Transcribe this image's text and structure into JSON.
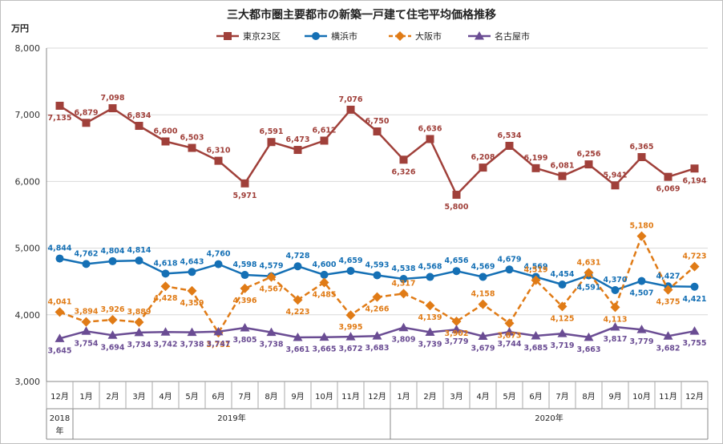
{
  "chart_data": {
    "type": "line",
    "title": "三大都市圏主要都市の新築一戸建て住宅平均価格推移",
    "ylabel": "万円",
    "ylim": [
      3000,
      8000
    ],
    "yticks": [
      "3,000",
      "4,000",
      "5,000",
      "6,000",
      "7,000",
      "8,000"
    ],
    "ytick_values": [
      3000,
      4000,
      5000,
      6000,
      7000,
      8000
    ],
    "categories": [
      "12月",
      "1月",
      "2月",
      "3月",
      "4月",
      "5月",
      "6月",
      "7月",
      "8月",
      "9月",
      "10月",
      "11月",
      "12月",
      "1月",
      "2月",
      "3月",
      "4月",
      "5月",
      "6月",
      "7月",
      "8月",
      "9月",
      "10月",
      "11月",
      "12月"
    ],
    "year_groups": [
      {
        "label_line1": "2018",
        "label_line2": "年",
        "start": 0,
        "end": 0
      },
      {
        "label_line1": "2019年",
        "label_line2": "",
        "start": 1,
        "end": 12
      },
      {
        "label_line1": "2020年",
        "label_line2": "",
        "start": 13,
        "end": 24
      }
    ],
    "series": [
      {
        "name": "東京23区",
        "color": "#a0403a",
        "marker": "square",
        "dashed": false,
        "values": [
          7135,
          6879,
          7098,
          6834,
          6600,
          6503,
          6310,
          5971,
          6591,
          6473,
          6612,
          7076,
          6750,
          6326,
          6636,
          5800,
          6208,
          6534,
          6199,
          6081,
          6256,
          5941,
          6365,
          6069,
          6194
        ],
        "labels": [
          "7,135",
          "6,879",
          "7,098",
          "6,834",
          "6,600",
          "6,503",
          "6,310",
          "5,971",
          "6,591",
          "6,473",
          "6,612",
          "7,076",
          "6,750",
          "6,326",
          "6,636",
          "5,800",
          "6,208",
          "6,534",
          "6,199",
          "6,081",
          "6,256",
          "5,941",
          "6,365",
          "6,069",
          "6,194"
        ]
      },
      {
        "name": "横浜市",
        "color": "#1570b5",
        "marker": "circle",
        "dashed": false,
        "values": [
          4844,
          4762,
          4804,
          4814,
          4618,
          4643,
          4760,
          4598,
          4579,
          4728,
          4600,
          4659,
          4593,
          4538,
          4568,
          4656,
          4569,
          4679,
          4569,
          4454,
          4591,
          4370,
          4507,
          4427,
          4421
        ],
        "labels": [
          "4,844",
          "4,762",
          "4,804",
          "4,814",
          "4,618",
          "4,643",
          "4,760",
          "4,598",
          "4,579",
          "4,728",
          "4,600",
          "4,659",
          "4,593",
          "4,538",
          "4,568",
          "4,656",
          "4,569",
          "4,679",
          "4,569",
          "4,454",
          "4,591",
          "4,370",
          "4,507",
          "4,427",
          "4,421"
        ]
      },
      {
        "name": "大阪市",
        "color": "#e07b16",
        "marker": "diamond",
        "dashed": true,
        "values": [
          4041,
          3894,
          3926,
          3889,
          4428,
          4359,
          3731,
          4396,
          4567,
          4223,
          4485,
          3995,
          4266,
          4317,
          4139,
          3902,
          4158,
          3873,
          4519,
          4125,
          4631,
          4113,
          5180,
          4375,
          4723
        ],
        "labels": [
          "4,041",
          "3,894",
          "3,926",
          "3,889",
          "4,428",
          "4,359",
          "3,731",
          "4,396",
          "4,567",
          "4,223",
          "4,485",
          "3,995",
          "4,266",
          "4,317",
          "4,139",
          "3,902",
          "4,158",
          "3,873",
          "4,519",
          "4,125",
          "4,631",
          "4,113",
          "5,180",
          "4,375",
          "4,723"
        ]
      },
      {
        "name": "名古屋市",
        "color": "#6a4c93",
        "marker": "triangle",
        "dashed": false,
        "values": [
          3645,
          3754,
          3694,
          3734,
          3742,
          3738,
          3747,
          3805,
          3738,
          3661,
          3665,
          3672,
          3683,
          3809,
          3739,
          3779,
          3679,
          3744,
          3685,
          3719,
          3663,
          3817,
          3779,
          3682,
          3755
        ],
        "labels": [
          "3,645",
          "3,754",
          "3,694",
          "3,734",
          "3,742",
          "3,738",
          "3,747",
          "3,805",
          "3,738",
          "3,661",
          "3,665",
          "3,672",
          "3,683",
          "3,809",
          "3,739",
          "3,779",
          "3,679",
          "3,744",
          "3,685",
          "3,719",
          "3,663",
          "3,817",
          "3,779",
          "3,682",
          "3,755"
        ]
      }
    ]
  }
}
